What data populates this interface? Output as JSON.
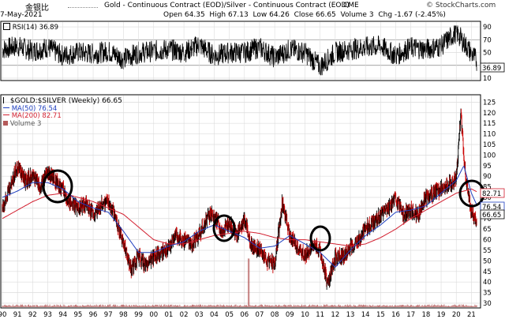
{
  "header": {
    "chinese_title": "金银比",
    "title": "Gold - Continuous Contract (EOD)/Silver - Continuous Contract (EOD)",
    "exchange": "CME",
    "date": "7-May-2021",
    "open_label": "Open",
    "open": "64.35",
    "high_label": "High",
    "high": "67.13",
    "low_label": "Low",
    "low": "64.26",
    "close_label": "Close",
    "close": "66.65",
    "volume_label": "Volume",
    "volume": "3",
    "chg_label": "Chg",
    "chg": "-1.67 (-2.45%)",
    "watermark": "© StockCharts.com"
  },
  "rsi_panel": {
    "label": "RSI(14) 36.89",
    "badge": "36.89",
    "levels": [
      70,
      30
    ]
  },
  "main_panel": {
    "label": "$GOLD:$SILVER (Weekly) 66.65",
    "ma50_label": "MA(50) 76.54",
    "ma200_label": "MA(200) 82.71",
    "volume_label": "Volume 3",
    "ma50_badge": "76.54",
    "ma200_badge": "82.71",
    "price_badge": "66.65"
  },
  "colors": {
    "up": "#000000",
    "down": "#cc0000",
    "ma50": "#1f3fbf",
    "ma200": "#d21f2f",
    "grid": "#dcdcdc",
    "volume": "#b45a5a"
  },
  "chart_data": [
    {
      "type": "line",
      "name": "RSI(14)",
      "y_ticks": [
        10,
        30,
        50,
        70,
        90
      ],
      "ylim": [
        10,
        95
      ],
      "x": [
        1990,
        1991,
        1992,
        1993,
        1994,
        1995,
        1996,
        1997,
        1998,
        1999,
        2000,
        2001,
        2002,
        2003,
        2004,
        2005,
        2006,
        2007,
        2008,
        2009,
        2010,
        2011,
        2012,
        2013,
        2014,
        2015,
        2016,
        2017,
        2018,
        2019,
        2020,
        2021.35
      ],
      "y": [
        55,
        60,
        52,
        58,
        45,
        50,
        48,
        52,
        40,
        50,
        52,
        55,
        50,
        62,
        45,
        50,
        50,
        58,
        42,
        55,
        50,
        28,
        50,
        55,
        58,
        60,
        45,
        58,
        55,
        60,
        82,
        37
      ]
    },
    {
      "type": "line",
      "title": "$GOLD:$SILVER (Weekly)",
      "x_ticks": [
        "90",
        "91",
        "92",
        "93",
        "94",
        "95",
        "96",
        "97",
        "98",
        "99",
        "00",
        "01",
        "02",
        "03",
        "04",
        "05",
        "06",
        "07",
        "08",
        "09",
        "10",
        "11",
        "12",
        "13",
        "14",
        "15",
        "16",
        "17",
        "18",
        "19",
        "20",
        "21"
      ],
      "y_ticks": [
        30,
        35,
        40,
        45,
        50,
        55,
        60,
        65,
        70,
        75,
        80,
        85,
        90,
        95,
        100,
        105,
        110,
        115,
        120,
        125
      ],
      "ylim": [
        30,
        127
      ],
      "series": [
        {
          "name": "$GOLD:$SILVER",
          "x": [
            1990,
            1990.5,
            1991,
            1991.5,
            1992,
            1992.5,
            1993,
            1993.5,
            1994,
            1994.5,
            1995,
            1995.5,
            1996,
            1996.5,
            1997,
            1997.5,
            1998,
            1998.5,
            1999,
            1999.5,
            2000,
            2000.5,
            2001,
            2001.5,
            2002,
            2002.5,
            2003,
            2003.5,
            2004,
            2004.5,
            2005,
            2005.5,
            2006,
            2006.5,
            2007,
            2007.5,
            2008,
            2008.5,
            2009,
            2009.5,
            2010,
            2010.5,
            2011,
            2011.5,
            2012,
            2012.5,
            2013,
            2013.5,
            2014,
            2014.5,
            2015,
            2015.5,
            2016,
            2016.5,
            2017,
            2017.5,
            2018,
            2018.5,
            2019,
            2019.5,
            2020,
            2020.3,
            2020.6,
            2021,
            2021.35
          ],
          "y": [
            75,
            85,
            95,
            88,
            90,
            85,
            92,
            88,
            84,
            77,
            75,
            77,
            72,
            76,
            78,
            70,
            58,
            46,
            52,
            48,
            52,
            54,
            56,
            62,
            60,
            58,
            62,
            70,
            72,
            64,
            68,
            62,
            70,
            56,
            55,
            50,
            48,
            78,
            62,
            56,
            52,
            58,
            55,
            38,
            52,
            52,
            56,
            60,
            65,
            68,
            72,
            75,
            80,
            72,
            74,
            72,
            80,
            82,
            84,
            86,
            88,
            120,
            90,
            73,
            66.65
          ]
        },
        {
          "name": "MA(50)",
          "x": [
            1990,
            1991,
            1992,
            1993,
            1994,
            1995,
            1996,
            1997,
            1998,
            1999,
            2000,
            2001,
            2002,
            2003,
            2004,
            2005,
            2006,
            2007,
            2008,
            2009,
            2010,
            2011,
            2012,
            2013,
            2014,
            2015,
            2016,
            2017,
            2018,
            2019,
            2020,
            2020.5,
            2021,
            2021.35
          ],
          "y": [
            80,
            83,
            87,
            87,
            84,
            78,
            75,
            73,
            64,
            54,
            54,
            57,
            59,
            64,
            67,
            64,
            61,
            56,
            57,
            62,
            58,
            54,
            47,
            55,
            62,
            67,
            73,
            74,
            76,
            82,
            88,
            95,
            82,
            76.54
          ]
        },
        {
          "name": "MA(200)",
          "x": [
            1990,
            1991,
            1992,
            1993,
            1994,
            1995,
            1996,
            1997,
            1998,
            1999,
            2000,
            2001,
            2002,
            2003,
            2004,
            2005,
            2006,
            2007,
            2008,
            2009,
            2010,
            2011,
            2012,
            2013,
            2014,
            2015,
            2016,
            2017,
            2018,
            2019,
            2020,
            2021,
            2021.35
          ],
          "y": [
            70,
            74,
            78,
            81,
            82,
            80,
            78,
            75,
            72,
            66,
            60,
            58,
            58,
            60,
            62,
            63,
            64,
            63,
            61,
            60,
            60,
            59,
            58,
            57,
            58,
            61,
            65,
            70,
            74,
            78,
            82,
            84,
            82.71
          ]
        }
      ]
    }
  ]
}
